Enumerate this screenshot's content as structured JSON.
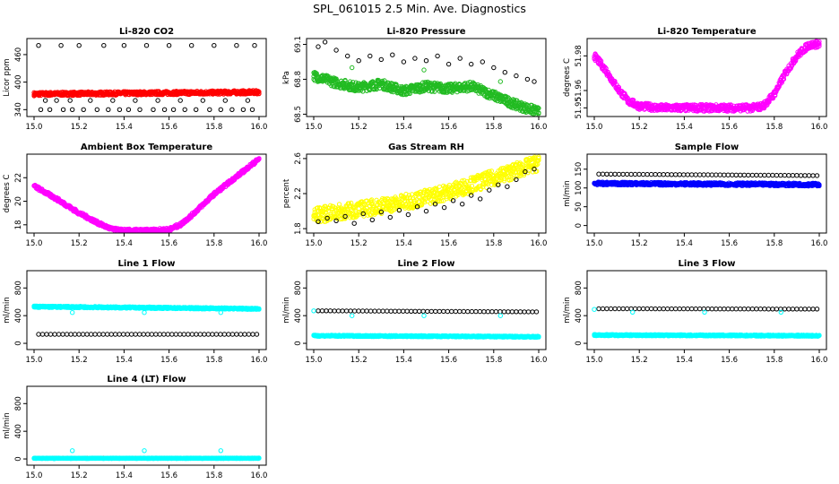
{
  "page": {
    "title": "SPL_061015  2.5 Min. Ave. Diagnostics"
  },
  "colors": {
    "black": "#000000",
    "red": "#ff0000",
    "green": "#22bb22",
    "magenta": "#ff00ff",
    "yellow": "#ffff00",
    "blue": "#0000ff",
    "cyan": "#00ffff"
  },
  "chart_data": [
    {
      "type": "scatter",
      "title": "Li-820 CO2",
      "ylabel": "Licor ppm",
      "xlim": [
        15.0,
        16.0
      ],
      "ylim": [
        325,
        495
      ],
      "xticks": [
        "15.0",
        "15.2",
        "15.4",
        "15.6",
        "15.8",
        "16.0"
      ],
      "yticks": [
        "340",
        "400",
        "460"
      ],
      "series": [
        {
          "name": "co2",
          "color": "red",
          "kind": "band",
          "x": [
            15.0,
            16.0
          ],
          "y": [
            374,
            378
          ],
          "spread": 4
        },
        {
          "name": "co2-raw",
          "color": "black",
          "kind": "points",
          "x": [
            15.03,
            15.07,
            15.13,
            15.17,
            15.22,
            15.28,
            15.33,
            15.38,
            15.42,
            15.47,
            15.53,
            15.58,
            15.62,
            15.67,
            15.72,
            15.78,
            15.83,
            15.88,
            15.93,
            15.97,
            15.05,
            15.1,
            15.16,
            15.25,
            15.35,
            15.45,
            15.55,
            15.65,
            15.75,
            15.85,
            15.95,
            15.02,
            15.12,
            15.2,
            15.31,
            15.4,
            15.5,
            15.6,
            15.7,
            15.8,
            15.9,
            15.98
          ],
          "y": [
            340,
            340,
            340,
            340,
            340,
            340,
            340,
            340,
            340,
            340,
            340,
            340,
            340,
            340,
            340,
            340,
            340,
            340,
            340,
            340,
            360,
            360,
            360,
            360,
            360,
            360,
            360,
            360,
            360,
            360,
            360,
            480,
            480,
            480,
            480,
            480,
            480,
            480,
            480,
            480,
            480,
            480
          ]
        }
      ]
    },
    {
      "type": "scatter",
      "title": "Li-820 Pressure",
      "ylabel": "kPa",
      "xlim": [
        15.0,
        16.0
      ],
      "ylim": [
        68.48,
        69.15
      ],
      "xticks": [
        "15.0",
        "15.2",
        "15.4",
        "15.6",
        "15.8",
        "16.0"
      ],
      "yticks": [
        "68.5",
        "68.8",
        "69.1"
      ],
      "series": [
        {
          "name": "pressure-green",
          "color": "green",
          "kind": "band",
          "x": [
            15.0,
            15.1,
            15.2,
            15.3,
            15.4,
            15.5,
            15.6,
            15.7,
            15.8,
            15.9,
            16.0
          ],
          "y": [
            68.83,
            68.77,
            68.73,
            68.76,
            68.7,
            68.74,
            68.72,
            68.74,
            68.66,
            68.58,
            68.52
          ],
          "spread": 0.04
        },
        {
          "name": "pressure-black",
          "color": "black",
          "kind": "line-points",
          "x": [
            15.02,
            15.05,
            15.1,
            15.15,
            15.2,
            15.25,
            15.3,
            15.35,
            15.4,
            15.45,
            15.5,
            15.55,
            15.6,
            15.65,
            15.7,
            15.75,
            15.8,
            15.85,
            15.9,
            15.95,
            15.98
          ],
          "y": [
            69.08,
            69.12,
            69.05,
            69.0,
            68.96,
            69.0,
            68.97,
            69.01,
            68.95,
            68.98,
            68.96,
            69.0,
            68.93,
            68.98,
            68.93,
            68.95,
            68.9,
            68.86,
            68.83,
            68.8,
            68.78
          ]
        },
        {
          "name": "pressure-outliers",
          "color": "green",
          "kind": "points",
          "x": [
            15.17,
            15.49,
            15.83
          ],
          "y": [
            68.9,
            68.88,
            68.78
          ]
        }
      ]
    },
    {
      "type": "scatter",
      "title": "Li-820 Temperature",
      "ylabel": "degrees C",
      "xlim": [
        15.0,
        16.0
      ],
      "ylim": [
        51.945,
        51.99
      ],
      "xticks": [
        "15.0",
        "15.2",
        "15.4",
        "15.6",
        "15.8",
        "16.0"
      ],
      "yticks": [
        "51.95",
        "51.96",
        "51.98"
      ],
      "series": [
        {
          "name": "licor-temp",
          "color": "magenta",
          "kind": "band",
          "x": [
            15.0,
            15.05,
            15.1,
            15.15,
            15.2,
            15.3,
            15.4,
            15.5,
            15.6,
            15.7,
            15.75,
            15.8,
            15.85,
            15.9,
            15.95,
            16.0
          ],
          "y": [
            51.98,
            51.972,
            51.962,
            51.954,
            51.951,
            51.95,
            51.95,
            51.95,
            51.95,
            51.95,
            51.951,
            51.958,
            51.97,
            51.98,
            51.986,
            51.987
          ],
          "spread": 0.002
        }
      ]
    },
    {
      "type": "scatter",
      "title": "Ambient Box Temperature",
      "ylabel": "degrees C",
      "xlim": [
        15.0,
        16.0
      ],
      "ylim": [
        17.3,
        24.0
      ],
      "xticks": [
        "15.0",
        "15.2",
        "15.4",
        "15.6",
        "15.8",
        "16.0"
      ],
      "yticks": [
        "18",
        "20",
        "22"
      ],
      "series": [
        {
          "name": "box-temp",
          "color": "magenta",
          "kind": "band",
          "x": [
            15.0,
            15.1,
            15.2,
            15.3,
            15.35,
            15.4,
            15.5,
            15.6,
            15.65,
            15.7,
            15.8,
            15.9,
            16.0
          ],
          "y": [
            21.3,
            20.2,
            19.0,
            18.0,
            17.6,
            17.5,
            17.5,
            17.6,
            18.0,
            18.8,
            20.6,
            22.1,
            23.6
          ],
          "spread": 0.15
        }
      ]
    },
    {
      "type": "scatter",
      "title": "Gas Stream RH",
      "ylabel": "percent",
      "xlim": [
        15.0,
        16.0
      ],
      "ylim": [
        1.75,
        2.65
      ],
      "xticks": [
        "15.0",
        "15.2",
        "15.4",
        "15.6",
        "15.8",
        "16.0"
      ],
      "yticks": [
        "1.8",
        "2.2",
        "2.6"
      ],
      "series": [
        {
          "name": "rh-yellow",
          "color": "yellow",
          "kind": "band",
          "x": [
            15.0,
            15.2,
            15.4,
            15.6,
            15.8,
            16.0
          ],
          "y": [
            1.95,
            2.02,
            2.1,
            2.22,
            2.38,
            2.55
          ],
          "spread": 0.09
        },
        {
          "name": "rh-black",
          "color": "black",
          "kind": "line-points",
          "x": [
            15.02,
            15.06,
            15.1,
            15.14,
            15.18,
            15.22,
            15.26,
            15.3,
            15.34,
            15.38,
            15.42,
            15.46,
            15.5,
            15.54,
            15.58,
            15.62,
            15.66,
            15.7,
            15.74,
            15.78,
            15.82,
            15.86,
            15.9,
            15.94,
            15.98
          ],
          "y": [
            1.88,
            1.92,
            1.89,
            1.94,
            1.86,
            1.97,
            1.9,
            1.99,
            1.93,
            2.01,
            1.96,
            2.05,
            2.0,
            2.08,
            2.04,
            2.12,
            2.08,
            2.18,
            2.14,
            2.24,
            2.3,
            2.28,
            2.36,
            2.45,
            2.48
          ]
        }
      ]
    },
    {
      "type": "scatter",
      "title": "Sample Flow",
      "ylabel": "ml/min",
      "xlim": [
        15.0,
        16.0
      ],
      "ylim": [
        -20,
        190
      ],
      "xticks": [
        "15.0",
        "15.2",
        "15.4",
        "15.6",
        "15.8",
        "16.0"
      ],
      "yticks": [
        "0",
        "50",
        "100",
        "150"
      ],
      "series": [
        {
          "name": "sample-blue",
          "color": "blue",
          "kind": "band",
          "x": [
            15.0,
            16.0
          ],
          "y": [
            112,
            109
          ],
          "spread": 4
        },
        {
          "name": "sample-black",
          "color": "black",
          "kind": "points-dense",
          "x": [
            15.02,
            15.99
          ],
          "y": [
            137,
            133
          ]
        }
      ]
    },
    {
      "type": "scatter",
      "title": "Line 1 Flow",
      "ylabel": "ml/min",
      "xlim": [
        15.0,
        16.0
      ],
      "ylim": [
        -90,
        1050
      ],
      "xticks": [
        "15.0",
        "15.2",
        "15.4",
        "15.6",
        "15.8",
        "16.0"
      ],
      "yticks": [
        "0",
        "400",
        "800"
      ],
      "series": [
        {
          "name": "line1-cyan",
          "color": "cyan",
          "kind": "band",
          "x": [
            15.0,
            16.0
          ],
          "y": [
            530,
            500
          ],
          "spread": 12
        },
        {
          "name": "line1-black",
          "color": "black",
          "kind": "points-dense",
          "x": [
            15.02,
            15.99
          ],
          "y": [
            130,
            130
          ]
        },
        {
          "name": "line1-cyan-out",
          "color": "cyan",
          "kind": "points",
          "x": [
            15.17,
            15.49,
            15.83
          ],
          "y": [
            445,
            445,
            445
          ]
        }
      ]
    },
    {
      "type": "scatter",
      "title": "Line 2 Flow",
      "ylabel": "ml/min",
      "xlim": [
        15.0,
        16.0
      ],
      "ylim": [
        -90,
        1050
      ],
      "xticks": [
        "15.0",
        "15.2",
        "15.4",
        "15.6",
        "15.8",
        "16.0"
      ],
      "yticks": [
        "0",
        "400",
        "800"
      ],
      "series": [
        {
          "name": "line2-cyan",
          "color": "cyan",
          "kind": "band",
          "x": [
            15.0,
            16.0
          ],
          "y": [
            110,
            95
          ],
          "spread": 10
        },
        {
          "name": "line2-black",
          "color": "black",
          "kind": "points-dense",
          "x": [
            15.02,
            15.99
          ],
          "y": [
            470,
            455
          ]
        },
        {
          "name": "line2-cyan-out",
          "color": "cyan",
          "kind": "points",
          "x": [
            15.0,
            15.17,
            15.49,
            15.83
          ],
          "y": [
            470,
            400,
            400,
            400
          ]
        }
      ]
    },
    {
      "type": "scatter",
      "title": "Line 3 Flow",
      "ylabel": "ml/min",
      "xlim": [
        15.0,
        16.0
      ],
      "ylim": [
        -90,
        1050
      ],
      "xticks": [
        "15.0",
        "15.2",
        "15.4",
        "15.6",
        "15.8",
        "16.0"
      ],
      "yticks": [
        "0",
        "400",
        "800"
      ],
      "series": [
        {
          "name": "line3-cyan",
          "color": "cyan",
          "kind": "band",
          "x": [
            15.0,
            16.0
          ],
          "y": [
            120,
            110
          ],
          "spread": 10
        },
        {
          "name": "line3-black",
          "color": "black",
          "kind": "points-dense",
          "x": [
            15.02,
            15.99
          ],
          "y": [
            500,
            495
          ]
        },
        {
          "name": "line3-cyan-out",
          "color": "cyan",
          "kind": "points",
          "x": [
            15.0,
            15.17,
            15.49,
            15.83
          ],
          "y": [
            490,
            450,
            450,
            450
          ]
        }
      ]
    },
    {
      "type": "scatter",
      "title": "Line 4 (LT) Flow",
      "ylabel": "ml/min",
      "xlim": [
        15.0,
        16.0
      ],
      "ylim": [
        -90,
        1050
      ],
      "xticks": [
        "15.0",
        "15.2",
        "15.4",
        "15.6",
        "15.8",
        "16.0"
      ],
      "yticks": [
        "0",
        "400",
        "800"
      ],
      "series": [
        {
          "name": "line4-black",
          "color": "black",
          "kind": "points-dense",
          "x": [
            15.02,
            15.99
          ],
          "y": [
            10,
            10
          ]
        },
        {
          "name": "line4-cyan",
          "color": "cyan",
          "kind": "band",
          "x": [
            15.0,
            16.0
          ],
          "y": [
            10,
            10
          ],
          "spread": 4
        },
        {
          "name": "line4-cyan-out",
          "color": "cyan",
          "kind": "points",
          "x": [
            15.17,
            15.49,
            15.83
          ],
          "y": [
            120,
            120,
            120
          ]
        }
      ]
    }
  ]
}
